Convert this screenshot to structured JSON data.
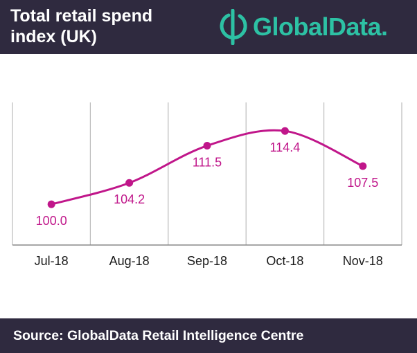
{
  "header": {
    "title_line1": "Total retail spend",
    "title_line2": "index (UK)",
    "logo_text": "GlobalData."
  },
  "footer": {
    "source": "Source: GlobalData Retail Intelligence Centre"
  },
  "colors": {
    "header_bg": "#2f2a3f",
    "logo": "#2dc1a4",
    "series": "#c0168a",
    "grid": "#bbbbbb"
  },
  "chart_data": {
    "type": "line",
    "title": "Total retail spend index (UK)",
    "xlabel": "",
    "ylabel": "",
    "categories": [
      "Jul-18",
      "Aug-18",
      "Sep-18",
      "Oct-18",
      "Nov-18"
    ],
    "series": [
      {
        "values": [
          100.0,
          104.2,
          111.5,
          114.4,
          107.5
        ],
        "labels": [
          "100.0",
          "104.2",
          "111.5",
          "114.4",
          "107.5"
        ]
      }
    ],
    "ylim": [
      92,
      120
    ],
    "grid": "vertical",
    "smooth": true
  }
}
